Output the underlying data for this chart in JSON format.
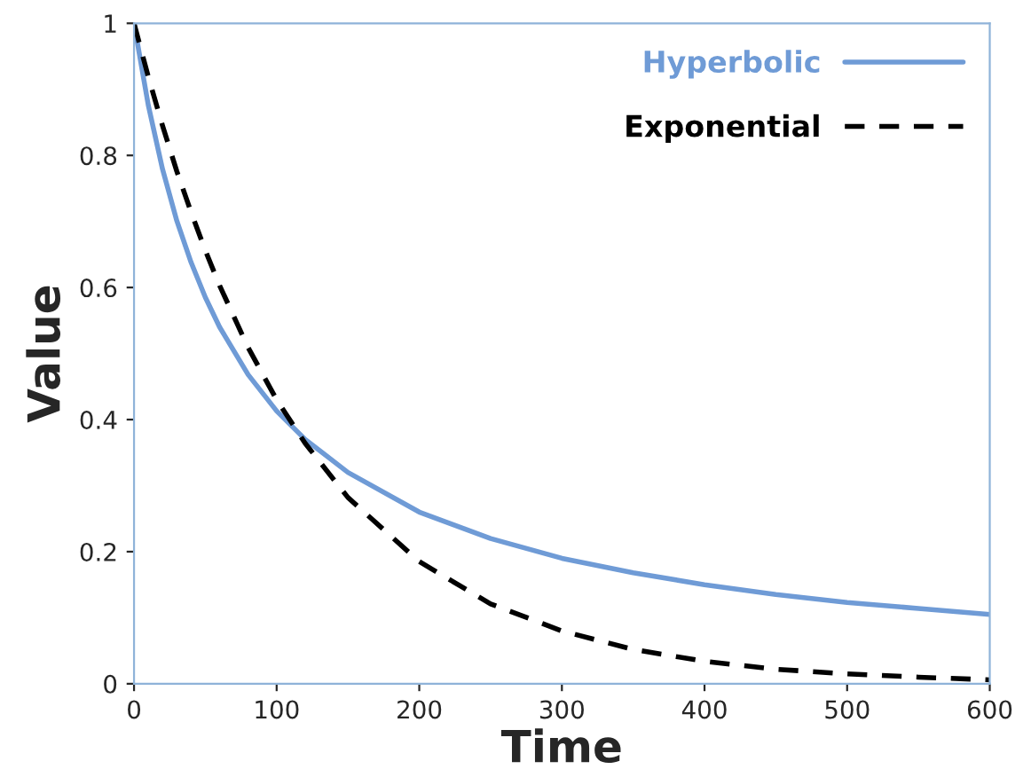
{
  "chart_data": {
    "type": "line",
    "xlabel": "Time",
    "ylabel": "Value",
    "xlim": [
      0,
      600
    ],
    "ylim": [
      0,
      1
    ],
    "xticks": [
      0,
      100,
      200,
      300,
      400,
      500,
      600
    ],
    "yticks": [
      0,
      0.2,
      0.4,
      0.6,
      0.8,
      1
    ],
    "grid": false,
    "legend": "top right",
    "marker": "none",
    "series": [
      {
        "name": "Hyperbolic",
        "color": "#6f9bd6",
        "line_style": "solid",
        "x": [
          0,
          10,
          20,
          30,
          40,
          50,
          60,
          80,
          100,
          120,
          150,
          200,
          250,
          300,
          350,
          400,
          450,
          500,
          550,
          600
        ],
        "values": [
          1,
          0.876,
          0.779,
          0.701,
          0.638,
          0.585,
          0.54,
          0.468,
          0.413,
          0.37,
          0.32,
          0.26,
          0.22,
          0.19,
          0.168,
          0.15,
          0.135,
          0.123,
          0.114,
          0.105
        ]
      },
      {
        "name": "Exponential",
        "color": "#000000",
        "line_style": "dashed",
        "x": [
          0,
          10,
          20,
          30,
          40,
          50,
          60,
          80,
          100,
          120,
          150,
          200,
          250,
          300,
          350,
          400,
          450,
          500,
          550,
          600
        ],
        "values": [
          1,
          0.919,
          0.845,
          0.776,
          0.714,
          0.656,
          0.603,
          0.509,
          0.43,
          0.364,
          0.282,
          0.185,
          0.121,
          0.08,
          0.052,
          0.034,
          0.022,
          0.015,
          0.01,
          0.006
        ]
      }
    ]
  }
}
